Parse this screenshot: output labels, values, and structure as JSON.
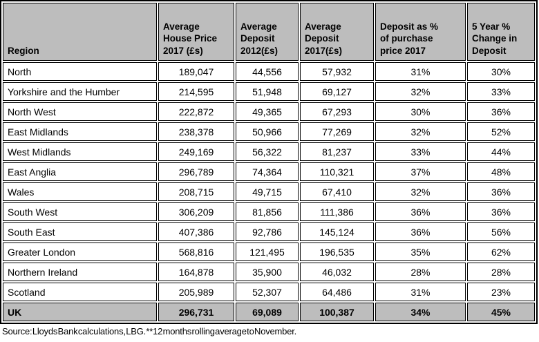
{
  "table": {
    "columns": [
      "Region",
      "Average\nHouse Price\n2017 (£s)",
      "Average\nDeposit\n2012(£s)",
      "Average\nDeposit\n2017(£s)",
      "Deposit as %\nof purchase\nprice 2017",
      "5 Year %\nChange in\nDeposit"
    ],
    "rows": [
      {
        "cells": [
          "North",
          "189,047",
          "44,556",
          "57,932",
          "31%",
          "30%"
        ]
      },
      {
        "cells": [
          "Yorkshire and the Humber",
          "214,595",
          "51,948",
          "69,127",
          "32%",
          "33%"
        ]
      },
      {
        "cells": [
          "North West",
          "222,872",
          "49,365",
          "67,293",
          "30%",
          "36%"
        ]
      },
      {
        "cells": [
          "East Midlands",
          "238,378",
          "50,966",
          "77,269",
          "32%",
          "52%"
        ]
      },
      {
        "cells": [
          "West Midlands",
          "249,169",
          "56,322",
          "81,237",
          "33%",
          "44%"
        ]
      },
      {
        "cells": [
          "East Anglia",
          "296,789",
          "74,364",
          "110,321",
          "37%",
          "48%"
        ]
      },
      {
        "cells": [
          "Wales",
          "208,715",
          "49,715",
          "67,410",
          "32%",
          "36%"
        ]
      },
      {
        "cells": [
          "South West",
          "306,209",
          "81,856",
          "111,386",
          "36%",
          "36%"
        ]
      },
      {
        "cells": [
          "South East",
          "407,386",
          "92,786",
          "145,124",
          "36%",
          "56%"
        ]
      },
      {
        "cells": [
          "Greater London",
          "568,816",
          "121,495",
          "196,535",
          "35%",
          "62%"
        ]
      },
      {
        "cells": [
          "Northern Ireland",
          "164,878",
          "35,900",
          "46,032",
          "28%",
          "28%"
        ]
      },
      {
        "cells": [
          "Scotland",
          "205,989",
          "52,307",
          "64,486",
          "31%",
          "23%"
        ]
      },
      {
        "cells": [
          "UK",
          "296,731",
          "69,089",
          "100,387",
          "34%",
          "45%"
        ],
        "is_total": true
      }
    ]
  },
  "footer": {
    "source": "Source: Lloyds Bank calculations, LBG. **12 months rolling average to November."
  },
  "colors": {
    "header_bg": "#bdbdbd",
    "total_bg": "#bdbdbd",
    "row_bg": "#ffffff",
    "border": "#000000"
  }
}
